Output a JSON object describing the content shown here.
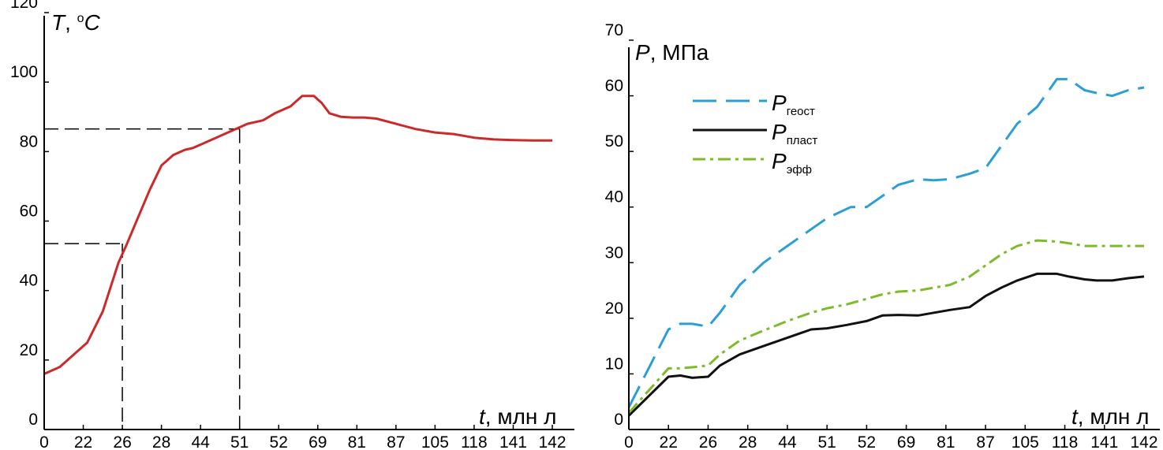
{
  "chart_data": [
    {
      "type": "line",
      "categories": [
        "0",
        "22",
        "26",
        "28",
        "44",
        "51",
        "52",
        "69",
        "81",
        "87",
        "105",
        "118",
        "141",
        "142"
      ],
      "ylim": [
        0,
        120
      ],
      "yticks": [
        "0",
        "20",
        "40",
        "60",
        "80",
        "100",
        "120"
      ],
      "ylabel": {
        "symbol": "T",
        "sep": ", ",
        "unit_sup": "o",
        "unit": "C"
      },
      "xlabel": {
        "symbol": "t",
        "unit": ", млн л"
      },
      "x_is_index": true,
      "xlim": [
        0,
        13
      ],
      "series": [
        {
          "color": "#cc2a2a",
          "style": "solid",
          "x": [
            0,
            0.4,
            0.8,
            1.1,
            1.5,
            1.9,
            2.1,
            2.4,
            2.7,
            3.0,
            3.3,
            3.6,
            3.8,
            4.0,
            4.4,
            4.9,
            5.2,
            5.6,
            5.9,
            6.3,
            6.6,
            6.9,
            7.1,
            7.3,
            7.6,
            7.9,
            8.2,
            8.5,
            9.0,
            9.5,
            10.0,
            10.5,
            11.0,
            11.5,
            12.0,
            12.5,
            13.0
          ],
          "y": [
            16,
            18,
            22,
            25,
            34,
            48,
            53,
            61,
            69,
            76,
            79,
            80.5,
            81,
            82,
            84,
            86.5,
            88,
            89,
            91,
            93,
            96,
            96,
            94,
            91,
            90,
            89.8,
            89.8,
            89.5,
            88,
            86.5,
            85.5,
            85,
            84,
            83.5,
            83.3,
            83.2,
            83.2
          ]
        }
      ],
      "guides": [
        {
          "x": 2.0,
          "y": 53.5,
          "xlabel": "26"
        },
        {
          "x": 5.0,
          "y": 86.5,
          "xlabel": "51"
        }
      ]
    },
    {
      "type": "line",
      "categories": [
        "0",
        "22",
        "26",
        "28",
        "44",
        "51",
        "52",
        "69",
        "81",
        "87",
        "105",
        "118",
        "141",
        "142"
      ],
      "ylim": [
        0,
        70
      ],
      "yticks": [
        "0",
        "10",
        "20",
        "30",
        "40",
        "50",
        "60",
        "70"
      ],
      "ylabel": {
        "symbol": "P",
        "unit": ", МПа"
      },
      "xlabel": {
        "symbol": "t",
        "unit": ", млн л"
      },
      "x_is_index": true,
      "xlim": [
        0,
        13
      ],
      "legend_position": "top-left",
      "series": [
        {
          "name": "P",
          "subscript": "геост",
          "color": "#2a9fd6",
          "style": "dashed",
          "x": [
            0,
            0.5,
            1.0,
            1.3,
            1.6,
            2.0,
            2.3,
            2.8,
            3.4,
            4.0,
            4.6,
            5.0,
            5.6,
            6.0,
            6.4,
            6.8,
            7.3,
            7.7,
            8.1,
            8.6,
            9.0,
            9.4,
            9.8,
            10.3,
            10.8,
            11.1,
            11.5,
            11.8,
            12.2,
            12.6,
            13.0
          ],
          "y": [
            4,
            11,
            18,
            19,
            19,
            18.5,
            21,
            26,
            30,
            33,
            36,
            38,
            40,
            40,
            42,
            44,
            45,
            44.8,
            45,
            46,
            47,
            51,
            55,
            58,
            63,
            63,
            61,
            60.5,
            60,
            61,
            61.5
          ]
        },
        {
          "name": "P",
          "subscript": "пласт",
          "color": "#111111",
          "style": "solid",
          "x": [
            0,
            0.5,
            1.0,
            1.3,
            1.6,
            2.0,
            2.3,
            2.8,
            3.4,
            4.0,
            4.6,
            5.0,
            5.5,
            6.0,
            6.4,
            6.8,
            7.3,
            7.7,
            8.1,
            8.6,
            9.0,
            9.4,
            9.8,
            10.3,
            10.8,
            11.1,
            11.5,
            11.8,
            12.2,
            12.6,
            13.0
          ],
          "y": [
            2.5,
            6,
            9.5,
            9.7,
            9.3,
            9.5,
            11.5,
            13.5,
            15,
            16.5,
            18,
            18.2,
            18.8,
            19.5,
            20.5,
            20.6,
            20.5,
            21,
            21.5,
            22,
            24,
            25.5,
            26.8,
            28,
            28,
            27.5,
            27,
            26.8,
            26.8,
            27.2,
            27.5
          ]
        },
        {
          "name": "P",
          "subscript": "эфф",
          "color": "#7dbb2a",
          "style": "dashdot",
          "x": [
            0,
            0.5,
            1.0,
            1.3,
            1.6,
            2.0,
            2.3,
            2.8,
            3.4,
            4.0,
            4.6,
            5.0,
            5.5,
            6.0,
            6.4,
            6.8,
            7.3,
            7.7,
            8.1,
            8.6,
            9.0,
            9.4,
            9.8,
            10.3,
            10.8,
            11.1,
            11.5,
            11.8,
            12.2,
            12.6,
            13.0
          ],
          "y": [
            3,
            7,
            11,
            11,
            11.2,
            11.5,
            13.5,
            16,
            17.8,
            19.5,
            21,
            21.8,
            22.5,
            23.5,
            24.3,
            24.8,
            25,
            25.5,
            26,
            27.5,
            29.5,
            31.5,
            33,
            34,
            33.8,
            33.5,
            33,
            33,
            33,
            33,
            33
          ]
        }
      ]
    }
  ]
}
